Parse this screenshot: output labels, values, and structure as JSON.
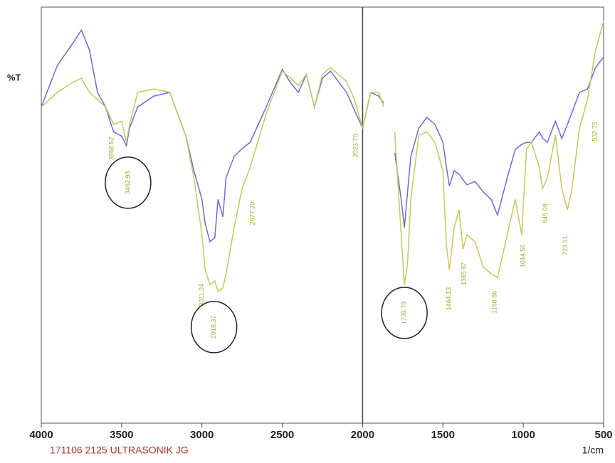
{
  "chart_data": {
    "type": "line",
    "y_label": "%T",
    "x_label": "1/cm",
    "footer": "171106 2125 ULTRASONIK JG",
    "x": [
      4000,
      3900,
      3800,
      3750,
      3700,
      3650,
      3600,
      3550,
      3500,
      3470,
      3450,
      3400,
      3300,
      3200,
      3100,
      3050,
      3000,
      2980,
      2950,
      2920,
      2900,
      2870,
      2850,
      2800,
      2750,
      2700,
      2600,
      2500,
      2450,
      2400,
      2350,
      2300,
      2250,
      2200,
      2100,
      2050,
      2000,
      1950,
      1900,
      1870,
      1850,
      1800,
      1760,
      1740,
      1720,
      1700,
      1650,
      1600,
      1550,
      1500,
      1480,
      1460,
      1430,
      1400,
      1375,
      1350,
      1300,
      1250,
      1200,
      1160,
      1100,
      1050,
      1010,
      980,
      950,
      900,
      880,
      850,
      800,
      760,
      725,
      700,
      650,
      600,
      550,
      500
    ],
    "series": [
      {
        "name": "blue",
        "color": "#6a6ae0",
        "values": [
          76,
          86,
          91.5,
          94.5,
          89.7,
          79.5,
          76,
          70,
          69,
          66.7,
          71,
          76,
          78.6,
          79.5,
          69,
          60.7,
          53.8,
          48,
          43.6,
          44.6,
          53.8,
          49.6,
          59,
          64.1,
          66,
          67.5,
          76,
          85,
          81.9,
          79.5,
          83.8,
          76,
          82.9,
          84.6,
          79.5,
          75.2,
          70.9,
          79.5,
          78.6,
          76.9,
          null,
          65,
          53.8,
          47,
          55.6,
          64.1,
          70.9,
          73.5,
          71.8,
          67.5,
          62,
          57,
          60.7,
          59.8,
          58.5,
          57.3,
          58.1,
          55.6,
          53.8,
          50,
          59,
          65.8,
          67,
          67.5,
          67.5,
          70,
          68.5,
          67.5,
          72.6,
          68.4,
          71.8,
          74.4,
          79.5,
          80.3,
          85.5,
          88
        ]
      },
      {
        "name": "yellow",
        "color": "#c8c85a",
        "values": [
          76,
          79.5,
          82,
          82.9,
          79.5,
          77.8,
          76,
          71.8,
          72.6,
          67.5,
          71.8,
          79.5,
          80.3,
          79.5,
          69,
          59,
          45.3,
          36.8,
          33.3,
          34.2,
          31.6,
          32.5,
          35.9,
          47,
          56.4,
          61.5,
          74.4,
          84.6,
          83,
          81.2,
          83.8,
          76,
          83.8,
          85.5,
          82.1,
          77.8,
          70.9,
          79.5,
          79.5,
          76,
          null,
          70,
          45.3,
          33.3,
          38.5,
          53.8,
          69.2,
          70,
          67.5,
          60.7,
          43.6,
          36.8,
          47,
          51.3,
          41.9,
          45.3,
          43.6,
          37.6,
          35.9,
          35,
          45.3,
          53.8,
          45.3,
          65.8,
          67.5,
          61.5,
          56.4,
          59,
          69.2,
          56.4,
          51.3,
          55.6,
          70.9,
          77.8,
          89.7,
          96.6
        ]
      }
    ],
    "xlim": [
      4000,
      500
    ],
    "xticks": [
      4000,
      3500,
      3000,
      2500,
      2000,
      1500,
      1000,
      500
    ],
    "ylim": [
      0,
      100
    ],
    "vlines": [
      2000
    ],
    "annotations": [
      {
        "text": "3558.52",
        "x": 3560,
        "y": 66
      },
      {
        "text": "3462.98",
        "x": 3460,
        "y": 57.8,
        "circled": true
      },
      {
        "text": "3011.24",
        "x": 3000,
        "y": 30.8
      },
      {
        "text": "2918.37",
        "x": 2925,
        "y": 23.1,
        "circled": true
      },
      {
        "text": "2677.20",
        "x": 2683,
        "y": 50.4
      },
      {
        "text": "2023.70",
        "x": 2042,
        "y": 66.7
      },
      {
        "text": "1739.79",
        "x": 1740,
        "y": 26.5,
        "circled": true
      },
      {
        "text": "1464.13",
        "x": 1461,
        "y": 29.9
      },
      {
        "text": "1365.87",
        "x": 1368,
        "y": 35.9
      },
      {
        "text": "1160.86",
        "x": 1177,
        "y": 29.1
      },
      {
        "text": "1014.56",
        "x": 1000,
        "y": 40.2
      },
      {
        "text": "845.09",
        "x": 860,
        "y": 50.4
      },
      {
        "text": "723.31",
        "x": 736,
        "y": 42.7
      },
      {
        "text": "532.75",
        "x": 553,
        "y": 70.1
      }
    ]
  }
}
